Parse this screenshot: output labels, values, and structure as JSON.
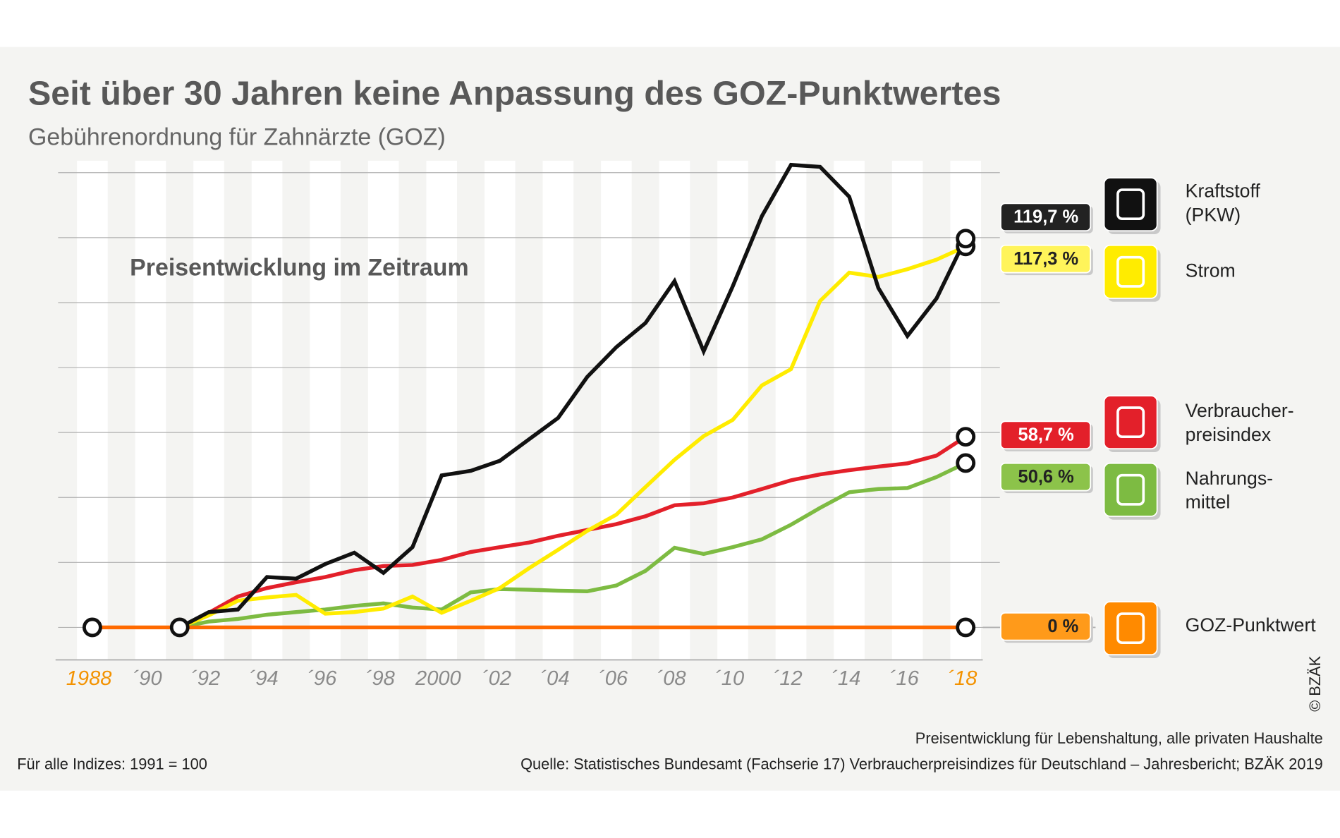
{
  "chart_data": {
    "type": "line",
    "title": "Seit über 30 Jahren keine Anpassung des GOZ-Punktwertes",
    "subtitle": "Gebührenordnung für Zahnärzte (GOZ)",
    "annotation": "Preisentwicklung im Zeitraum",
    "note": "Für alle Indizes: 1991 = 100",
    "source_lines": [
      "Preisentwicklung für Lebenshaltung, alle privaten Haushalte",
      "Quelle: Statistisches Bundesamt (Fachserie 17) Verbraucherpreisindizes für Deutschland – Jahresbericht; BZÄK 2019"
    ],
    "copyright": "© BZÄK",
    "x": [
      1988,
      1989,
      1990,
      1991,
      1992,
      1993,
      1994,
      1995,
      1996,
      1997,
      1998,
      1999,
      2000,
      2001,
      2002,
      2003,
      2004,
      2005,
      2006,
      2007,
      2008,
      2009,
      2010,
      2011,
      2012,
      2013,
      2014,
      2015,
      2016,
      2017,
      2018
    ],
    "xlim": [
      1987.4,
      2018.6
    ],
    "xticks": [
      1988,
      {
        "value": 1990,
        "label": "´90"
      },
      {
        "value": 1992,
        "label": "´92"
      },
      {
        "value": 1994,
        "label": "´94"
      },
      {
        "value": 1996,
        "label": "´96"
      },
      {
        "value": 1998,
        "label": "´98"
      },
      2000,
      {
        "value": 2002,
        "label": "´02"
      },
      {
        "value": 2004,
        "label": "´04"
      },
      {
        "value": 2006,
        "label": "´06"
      },
      {
        "value": 2008,
        "label": "´08"
      },
      {
        "value": 2010,
        "label": "´10"
      },
      {
        "value": 2012,
        "label": "´12"
      },
      {
        "value": 2014,
        "label": "´14"
      },
      {
        "value": 2016,
        "label": "´16"
      },
      {
        "value": 2018,
        "label": "´18"
      }
    ],
    "xtick_color": "#8a8a8a",
    "xtick_highlight_color": "#f39200",
    "ylim": [
      -10,
      150
    ],
    "yticks": [
      0,
      20,
      40,
      60,
      80,
      100,
      120,
      140
    ],
    "grid": true,
    "series": [
      {
        "name": "Kraftstoff (PKW)",
        "color": "#111111",
        "markers": [
          30
        ],
        "values": [
          null,
          null,
          null,
          0,
          4.7,
          5.5,
          15.5,
          15,
          19.5,
          23,
          16.8,
          24.7,
          46.8,
          48.2,
          51.3,
          57.9,
          64.5,
          77.1,
          86.3,
          93.7,
          106.6,
          85,
          105,
          126.6,
          142.4,
          141.8,
          132.6,
          104.5,
          89.7,
          101.3,
          119.7
        ],
        "value_labels": [
          null,
          null,
          null,
          null,
          null,
          null,
          null,
          null,
          null,
          null,
          null,
          null,
          null,
          null,
          null,
          null,
          null,
          null,
          null,
          null,
          null,
          null,
          null,
          null,
          null,
          null,
          null,
          null,
          null,
          null,
          "119,7 %"
        ]
      },
      {
        "name": "Strom",
        "color": "#ffec00",
        "markers": [
          30
        ],
        "values": [
          null,
          null,
          null,
          0,
          3.7,
          8.2,
          9.2,
          10,
          4.2,
          4.7,
          5.8,
          9.5,
          4.5,
          8.2,
          12.1,
          18.2,
          23.9,
          29.7,
          34.7,
          43.2,
          51.6,
          58.9,
          63.9,
          74.5,
          79.5,
          100.5,
          109.2,
          107.9,
          110.3,
          113.2,
          117.3
        ],
        "value_labels": [
          null,
          null,
          null,
          null,
          null,
          null,
          null,
          null,
          null,
          null,
          null,
          null,
          null,
          null,
          null,
          null,
          null,
          null,
          null,
          null,
          null,
          null,
          null,
          null,
          null,
          null,
          null,
          null,
          null,
          null,
          "117,3 %"
        ]
      },
      {
        "name": "Verbraucher- preisindex",
        "color": "#e3202a",
        "markers": [
          30
        ],
        "values": [
          null,
          null,
          null,
          0,
          4.5,
          9.5,
          12.1,
          13.9,
          15.5,
          17.6,
          18.9,
          19.2,
          20.8,
          23.2,
          24.7,
          26.1,
          28.2,
          30,
          31.8,
          34.2,
          37.6,
          38.2,
          40,
          42.6,
          45.3,
          47.1,
          48.4,
          49.5,
          50.5,
          52.9,
          58.7
        ],
        "value_labels": [
          null,
          null,
          null,
          null,
          null,
          null,
          null,
          null,
          null,
          null,
          null,
          null,
          null,
          null,
          null,
          null,
          null,
          null,
          null,
          null,
          null,
          null,
          null,
          null,
          null,
          null,
          null,
          null,
          null,
          null,
          "58,7 %"
        ]
      },
      {
        "name": "Nahrungs- mittel",
        "color": "#7dbb42",
        "markers": [
          30
        ],
        "values": [
          null,
          null,
          null,
          0,
          1.8,
          2.6,
          3.9,
          4.7,
          5.5,
          6.6,
          7.4,
          6.1,
          5.5,
          10.8,
          11.8,
          11.6,
          11.3,
          11.1,
          12.9,
          17.4,
          24.5,
          22.6,
          24.7,
          27.1,
          31.6,
          36.8,
          41.6,
          42.6,
          42.9,
          46.3,
          50.6
        ],
        "value_labels": [
          null,
          null,
          null,
          null,
          null,
          null,
          null,
          null,
          null,
          null,
          null,
          null,
          null,
          null,
          null,
          null,
          null,
          null,
          null,
          null,
          null,
          null,
          null,
          null,
          null,
          null,
          null,
          null,
          null,
          null,
          "50,6 %"
        ]
      },
      {
        "name": "GOZ-Punktwert",
        "color": "#ff6a00",
        "markers": [
          0,
          3,
          30
        ],
        "values": [
          0,
          0,
          0,
          0,
          0,
          0,
          0,
          0,
          0,
          0,
          0,
          0,
          0,
          0,
          0,
          0,
          0,
          0,
          0,
          0,
          0,
          0,
          0,
          0,
          0,
          0,
          0,
          0,
          0,
          0,
          0
        ],
        "value_labels": [
          null,
          null,
          null,
          null,
          null,
          null,
          null,
          null,
          null,
          null,
          null,
          null,
          null,
          null,
          null,
          null,
          null,
          null,
          null,
          null,
          null,
          null,
          null,
          null,
          null,
          null,
          null,
          null,
          null,
          null,
          "0 %"
        ]
      }
    ]
  }
}
